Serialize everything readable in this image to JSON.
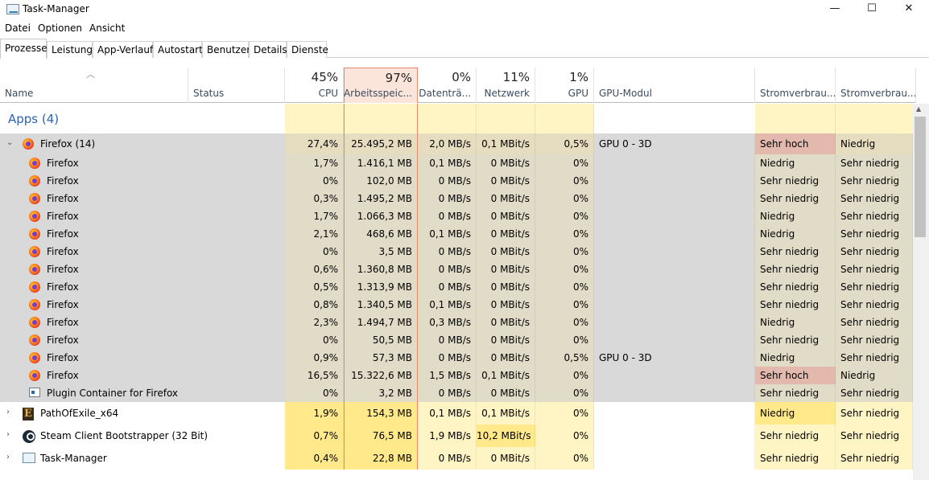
{
  "window": {
    "title": "Task-Manager",
    "minimize": "—",
    "maximize": "☐",
    "close": "✕"
  },
  "menu": [
    "Datei",
    "Optionen",
    "Ansicht"
  ],
  "tabs": [
    "Prozesse",
    "Leistung",
    "App-Verlauf",
    "Autostart",
    "Benutzer",
    "Details",
    "Dienste"
  ],
  "active_tab": "Prozesse",
  "columns": {
    "name": "Name",
    "status": "Status",
    "cpu": {
      "pct": "45%",
      "label": "CPU"
    },
    "mem": {
      "pct": "97%",
      "label": "Arbeitsspeic..."
    },
    "disk": {
      "pct": "0%",
      "label": "Datenträ..."
    },
    "net": {
      "pct": "11%",
      "label": "Netzwerk"
    },
    "gpu": {
      "pct": "1%",
      "label": "GPU"
    },
    "gpumod": "GPU-Modul",
    "power": "Stromverbrau...",
    "powertrend": "Stromverbrau..."
  },
  "group_title": "Apps (4)",
  "rows": [
    {
      "name": "Firefox (14)",
      "icon": "firefox-icon",
      "kind": "parent",
      "expand": "⌄",
      "cpu": "27,4%",
      "mem": "25.495,2 MB",
      "disk": "2,0 MB/s",
      "net": "0,1 MBit/s",
      "gpu": "0,5%",
      "gpumod": "GPU 0 - 3D",
      "power": "Sehr hoch",
      "trend": "Niedrig"
    },
    {
      "name": "Firefox",
      "icon": "firefox-icon",
      "kind": "child",
      "cpu": "1,7%",
      "mem": "1.416,1 MB",
      "disk": "0,1 MB/s",
      "net": "0 MBit/s",
      "gpu": "0%",
      "gpumod": "",
      "power": "Niedrig",
      "trend": "Sehr niedrig"
    },
    {
      "name": "Firefox",
      "icon": "firefox-icon",
      "kind": "child",
      "cpu": "0%",
      "mem": "102,0 MB",
      "disk": "0 MB/s",
      "net": "0 MBit/s",
      "gpu": "0%",
      "gpumod": "",
      "power": "Sehr niedrig",
      "trend": "Sehr niedrig"
    },
    {
      "name": "Firefox",
      "icon": "firefox-icon",
      "kind": "child",
      "cpu": "0,3%",
      "mem": "1.495,2 MB",
      "disk": "0 MB/s",
      "net": "0 MBit/s",
      "gpu": "0%",
      "gpumod": "",
      "power": "Sehr niedrig",
      "trend": "Sehr niedrig"
    },
    {
      "name": "Firefox",
      "icon": "firefox-icon",
      "kind": "child",
      "cpu": "1,7%",
      "mem": "1.066,3 MB",
      "disk": "0 MB/s",
      "net": "0 MBit/s",
      "gpu": "0%",
      "gpumod": "",
      "power": "Niedrig",
      "trend": "Sehr niedrig"
    },
    {
      "name": "Firefox",
      "icon": "firefox-icon",
      "kind": "child",
      "cpu": "2,1%",
      "mem": "468,6 MB",
      "disk": "0,1 MB/s",
      "net": "0 MBit/s",
      "gpu": "0%",
      "gpumod": "",
      "power": "Niedrig",
      "trend": "Sehr niedrig"
    },
    {
      "name": "Firefox",
      "icon": "firefox-icon",
      "kind": "child",
      "cpu": "0%",
      "mem": "3,5 MB",
      "disk": "0 MB/s",
      "net": "0 MBit/s",
      "gpu": "0%",
      "gpumod": "",
      "power": "Sehr niedrig",
      "trend": "Sehr niedrig"
    },
    {
      "name": "Firefox",
      "icon": "firefox-icon",
      "kind": "child",
      "cpu": "0,6%",
      "mem": "1.360,8 MB",
      "disk": "0 MB/s",
      "net": "0 MBit/s",
      "gpu": "0%",
      "gpumod": "",
      "power": "Sehr niedrig",
      "trend": "Sehr niedrig"
    },
    {
      "name": "Firefox",
      "icon": "firefox-icon",
      "kind": "child",
      "cpu": "0,5%",
      "mem": "1.313,9 MB",
      "disk": "0 MB/s",
      "net": "0 MBit/s",
      "gpu": "0%",
      "gpumod": "",
      "power": "Sehr niedrig",
      "trend": "Sehr niedrig"
    },
    {
      "name": "Firefox",
      "icon": "firefox-icon",
      "kind": "child",
      "cpu": "0,8%",
      "mem": "1.340,5 MB",
      "disk": "0,1 MB/s",
      "net": "0 MBit/s",
      "gpu": "0%",
      "gpumod": "",
      "power": "Sehr niedrig",
      "trend": "Sehr niedrig"
    },
    {
      "name": "Firefox",
      "icon": "firefox-icon",
      "kind": "child",
      "cpu": "2,3%",
      "mem": "1.494,7 MB",
      "disk": "0,3 MB/s",
      "net": "0 MBit/s",
      "gpu": "0%",
      "gpumod": "",
      "power": "Niedrig",
      "trend": "Sehr niedrig"
    },
    {
      "name": "Firefox",
      "icon": "firefox-icon",
      "kind": "child",
      "cpu": "0%",
      "mem": "50,5 MB",
      "disk": "0 MB/s",
      "net": "0 MBit/s",
      "gpu": "0%",
      "gpumod": "",
      "power": "Sehr niedrig",
      "trend": "Sehr niedrig"
    },
    {
      "name": "Firefox",
      "icon": "firefox-icon",
      "kind": "child",
      "cpu": "0,9%",
      "mem": "57,3 MB",
      "disk": "0 MB/s",
      "net": "0 MBit/s",
      "gpu": "0,5%",
      "gpumod": "GPU 0 - 3D",
      "power": "Niedrig",
      "trend": "Sehr niedrig"
    },
    {
      "name": "Firefox",
      "icon": "firefox-icon",
      "kind": "child",
      "cpu": "16,5%",
      "mem": "15.322,6 MB",
      "disk": "1,5 MB/s",
      "net": "0,1 MBit/s",
      "gpu": "0%",
      "gpumod": "",
      "power": "Sehr hoch",
      "trend": "Niedrig"
    },
    {
      "name": "Plugin Container for Firefox",
      "icon": "plugin-container-icon",
      "kind": "child",
      "cpu": "0%",
      "mem": "3,2 MB",
      "disk": "0 MB/s",
      "net": "0 MBit/s",
      "gpu": "0%",
      "gpumod": "",
      "power": "Sehr niedrig",
      "trend": "Sehr niedrig"
    },
    {
      "name": "PathOfExile_x64",
      "icon": "path-of-exile-icon",
      "kind": "app",
      "expand": "›",
      "cpu": "1,9%",
      "mem": "154,3 MB",
      "disk": "0,1 MB/s",
      "net": "0,1 MBit/s",
      "gpu": "0%",
      "gpumod": "",
      "power": "Niedrig",
      "trend": "Sehr niedrig"
    },
    {
      "name": "Steam Client Bootstrapper (32 Bit)",
      "icon": "steam-icon",
      "kind": "app",
      "expand": "›",
      "cpu": "0,7%",
      "mem": "76,5 MB",
      "disk": "1,9 MB/s",
      "net": "10,2 MBit/s",
      "gpu": "0%",
      "gpumod": "",
      "power": "Sehr niedrig",
      "trend": "Sehr niedrig"
    },
    {
      "name": "Task-Manager",
      "icon": "task-manager-icon",
      "kind": "app",
      "expand": "›",
      "cpu": "0,4%",
      "mem": "22,8 MB",
      "disk": "0 MB/s",
      "net": "0 MBit/s",
      "gpu": "0%",
      "gpumod": "",
      "power": "Sehr niedrig",
      "trend": "Sehr niedrig"
    }
  ],
  "colors": {
    "selection_bg": "#d9d9d9",
    "heat_light": "#fff4c4",
    "heat_mid": "#ffe98a",
    "heat_high": "#f3d7cf",
    "power_high": "#e3b9ad",
    "accent_blue": "#2a62b8",
    "mem_border": "#e88a6a"
  }
}
